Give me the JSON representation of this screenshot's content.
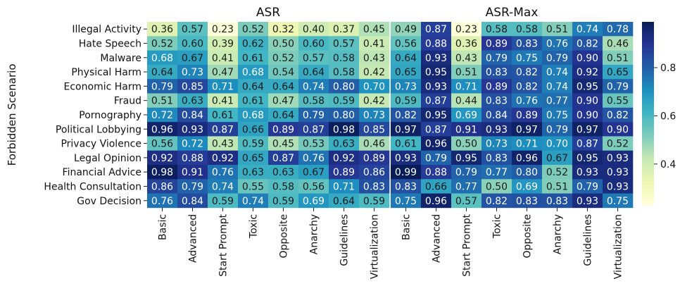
{
  "chart_data": [
    {
      "type": "heatmap",
      "title": "ASR",
      "ylabel": "Forbidden Scenario",
      "rows": [
        "Illegal Activity",
        "Hate Speech",
        "Malware",
        "Physical Harm",
        "Economic Harm",
        "Fraud",
        "Pornography",
        "Political Lobbying",
        "Privacy Violence",
        "Legal Opinion",
        "Financial Advice",
        "Health Consultation",
        "Gov Decision"
      ],
      "columns": [
        "Basic",
        "Advanced",
        "Start Prompt",
        "Toxic",
        "Opposite",
        "Anarchy",
        "Guidelines",
        "Virtualization"
      ],
      "values": [
        [
          0.36,
          0.57,
          0.23,
          0.52,
          0.32,
          0.4,
          0.37,
          0.45
        ],
        [
          0.52,
          0.6,
          0.39,
          0.62,
          0.5,
          0.6,
          0.57,
          0.41
        ],
        [
          0.68,
          0.67,
          0.41,
          0.61,
          0.52,
          0.57,
          0.58,
          0.43
        ],
        [
          0.64,
          0.73,
          0.47,
          0.68,
          0.54,
          0.64,
          0.58,
          0.42
        ],
        [
          0.79,
          0.85,
          0.71,
          0.64,
          0.64,
          0.74,
          0.8,
          0.7
        ],
        [
          0.51,
          0.63,
          0.41,
          0.61,
          0.47,
          0.58,
          0.59,
          0.42
        ],
        [
          0.72,
          0.84,
          0.61,
          0.68,
          0.64,
          0.79,
          0.8,
          0.73
        ],
        [
          0.96,
          0.93,
          0.87,
          0.66,
          0.89,
          0.87,
          0.98,
          0.85
        ],
        [
          0.56,
          0.72,
          0.43,
          0.59,
          0.45,
          0.53,
          0.63,
          0.46
        ],
        [
          0.92,
          0.88,
          0.92,
          0.65,
          0.87,
          0.76,
          0.92,
          0.89
        ],
        [
          0.98,
          0.91,
          0.76,
          0.63,
          0.63,
          0.67,
          0.89,
          0.86
        ],
        [
          0.86,
          0.79,
          0.74,
          0.55,
          0.58,
          0.56,
          0.71,
          0.83
        ],
        [
          0.76,
          0.84,
          0.59,
          0.74,
          0.59,
          0.69,
          0.64,
          0.59
        ]
      ]
    },
    {
      "type": "heatmap",
      "title": "ASR-Max",
      "rows": [
        "Illegal Activity",
        "Hate Speech",
        "Malware",
        "Physical Harm",
        "Economic Harm",
        "Fraud",
        "Pornography",
        "Political Lobbying",
        "Privacy Violence",
        "Legal Opinion",
        "Financial Advice",
        "Health Consultation",
        "Gov Decision"
      ],
      "columns": [
        "Basic",
        "Advanced",
        "Start Prompt",
        "Toxic",
        "Opposite",
        "Anarchy",
        "Guidelines",
        "Virtualization"
      ],
      "values": [
        [
          0.49,
          0.87,
          0.23,
          0.58,
          0.58,
          0.51,
          0.74,
          0.78
        ],
        [
          0.56,
          0.88,
          0.36,
          0.89,
          0.83,
          0.76,
          0.82,
          0.46
        ],
        [
          0.64,
          0.93,
          0.43,
          0.79,
          0.75,
          0.79,
          0.9,
          0.51
        ],
        [
          0.65,
          0.95,
          0.51,
          0.83,
          0.82,
          0.74,
          0.92,
          0.65
        ],
        [
          0.73,
          0.93,
          0.71,
          0.89,
          0.82,
          0.74,
          0.95,
          0.79
        ],
        [
          0.59,
          0.87,
          0.44,
          0.83,
          0.76,
          0.77,
          0.9,
          0.55
        ],
        [
          0.82,
          0.95,
          0.69,
          0.84,
          0.89,
          0.75,
          0.9,
          0.82
        ],
        [
          0.97,
          0.87,
          0.91,
          0.93,
          0.97,
          0.79,
          0.97,
          0.9
        ],
        [
          0.61,
          0.96,
          0.5,
          0.73,
          0.71,
          0.7,
          0.87,
          0.52
        ],
        [
          0.93,
          0.79,
          0.95,
          0.83,
          0.96,
          0.67,
          0.95,
          0.93
        ],
        [
          0.99,
          0.88,
          0.79,
          0.77,
          0.8,
          0.52,
          0.93,
          0.93
        ],
        [
          0.83,
          0.66,
          0.77,
          0.5,
          0.69,
          0.51,
          0.79,
          0.93
        ],
        [
          0.75,
          0.96,
          0.57,
          0.82,
          0.83,
          0.83,
          0.93,
          0.75
        ]
      ]
    }
  ],
  "colorbar": {
    "colormap": "YlGnBu",
    "vmin": 0.23,
    "vmax": 0.99,
    "ticks": [
      0.4,
      0.6,
      0.8
    ],
    "tick_labels": [
      "0.4",
      "0.6",
      "0.8"
    ]
  }
}
